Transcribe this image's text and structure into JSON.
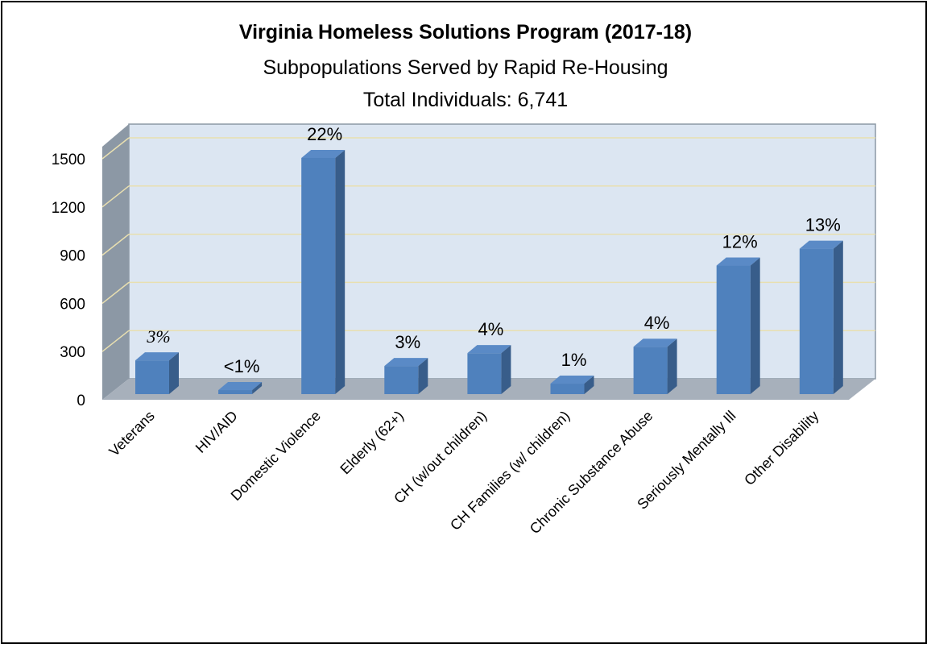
{
  "chart_data": {
    "type": "bar",
    "title": "Virginia Homeless Solutions Program (2017-18)",
    "subtitle": [
      "Subpopulations Served by Rapid Re-Housing",
      "Total Individuals: 6,741"
    ],
    "categories": [
      "Veterans",
      "HIV/AID",
      "Domestic Violence",
      "Elderly (62+)",
      "CH (w/out children)",
      "CH Families (w/ children)",
      "Chronic Substance Abuse",
      "Seriously Mentally Ill",
      "Other Disability"
    ],
    "values": [
      210,
      25,
      1470,
      175,
      255,
      65,
      295,
      800,
      905
    ],
    "data_labels": [
      "3%",
      "<1%",
      "22%",
      "3%",
      "4%",
      "1%",
      "4%",
      "12%",
      "13%"
    ],
    "ylim": [
      0,
      1500
    ],
    "yticks": [
      0,
      300,
      600,
      900,
      1200,
      1500
    ],
    "xlabel": "",
    "ylabel": "",
    "grid": true,
    "legend": "none",
    "colors": {
      "bar_front": "#4f81bd",
      "bar_side": "#385d8a",
      "bar_top": "#5a8ac6",
      "wall": "#dce6f2",
      "side_wall": "#8c98a5",
      "floor": "#a7b0bb",
      "gridline": "#e8dfb0"
    }
  }
}
